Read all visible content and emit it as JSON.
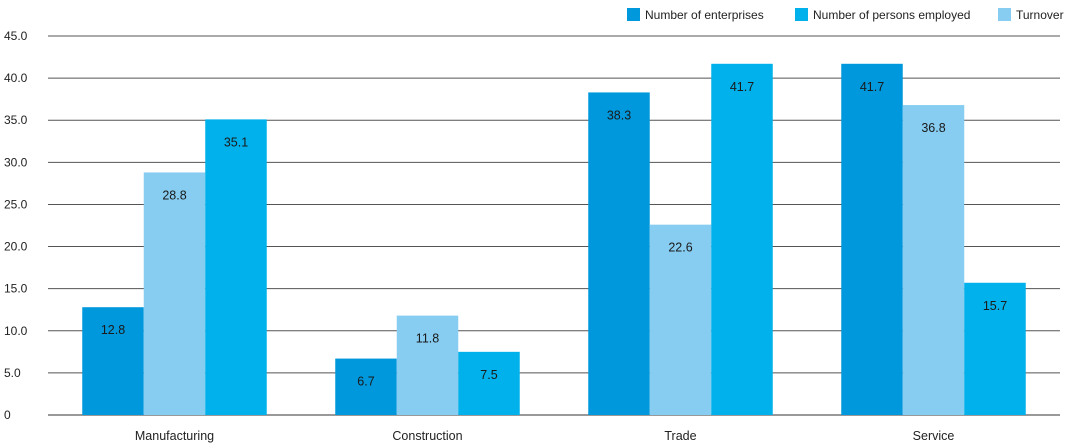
{
  "chart_data": {
    "type": "bar",
    "categories": [
      "Manufacturing",
      "Construction",
      "Trade",
      "Service"
    ],
    "series": [
      {
        "name": "Number of enterprises",
        "color": "#0098dc",
        "values": [
          12.8,
          6.7,
          38.3,
          41.7
        ],
        "labels": [
          "12.8",
          "6.7",
          "38.3",
          "41.7"
        ]
      },
      {
        "name": "Turnover",
        "color": "#87cdf2",
        "values": [
          28.8,
          11.8,
          22.6,
          36.8
        ],
        "labels": [
          "28.8",
          "11.8",
          "22.6",
          "36.8"
        ]
      },
      {
        "name": "Number of persons employed",
        "color": "#00b1eb",
        "values": [
          35.1,
          7.5,
          41.7,
          15.7
        ],
        "labels": [
          "35.1",
          "7.5",
          "41.7",
          "15.7"
        ]
      }
    ],
    "legend_order": [
      "Number of enterprises",
      "Number of persons employed",
      "Turnover"
    ],
    "legend_position": "top-right",
    "yticks": [
      "0",
      "5.0",
      "10.0",
      "15.0",
      "20.0",
      "25.0",
      "30.0",
      "35.0",
      "40.0",
      "45.0"
    ],
    "ylim": [
      0,
      45
    ],
    "grid": true,
    "title": "",
    "xlabel": "",
    "ylabel": ""
  }
}
